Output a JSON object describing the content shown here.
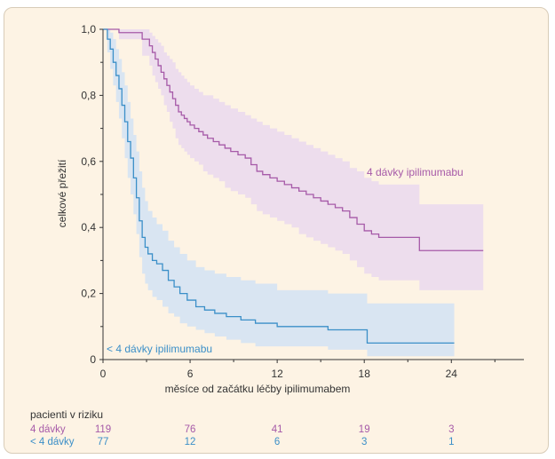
{
  "chart_data": {
    "type": "line",
    "xlabel": "měsíce od začátku léčby ipilimumabem",
    "ylabel": "celkové přežití",
    "xlim": [
      0,
      29
    ],
    "ylim": [
      0,
      1
    ],
    "xticks": [
      0,
      6,
      12,
      18,
      24
    ],
    "yticks": [
      0,
      0.2,
      0.4,
      0.6,
      0.8,
      1.0
    ],
    "ytick_labels": [
      "0",
      "0,2",
      "0,4",
      "0,6",
      "0,8",
      "1,0"
    ],
    "grid": false,
    "series": [
      {
        "name": "4 dávky ipilimumabu",
        "color": "#a65aa8",
        "band_color": "#ead8ee",
        "x": [
          0,
          1.1,
          2.7,
          3.2,
          3.4,
          3.6,
          3.8,
          4.0,
          4.2,
          4.4,
          4.6,
          4.8,
          5.0,
          5.2,
          5.4,
          5.6,
          5.8,
          6.0,
          6.3,
          6.6,
          6.9,
          7.2,
          7.6,
          8.0,
          8.4,
          8.8,
          9.3,
          9.8,
          10.2,
          10.6,
          11.0,
          11.5,
          12.0,
          12.5,
          13.0,
          13.5,
          14.0,
          14.5,
          15.0,
          15.5,
          16.0,
          16.5,
          17.0,
          17.5,
          18.0,
          18.5,
          19.0,
          21.8,
          26.2
        ],
        "y": [
          1.0,
          0.99,
          0.97,
          0.95,
          0.93,
          0.91,
          0.89,
          0.87,
          0.85,
          0.83,
          0.81,
          0.79,
          0.77,
          0.75,
          0.74,
          0.73,
          0.72,
          0.71,
          0.7,
          0.69,
          0.68,
          0.67,
          0.66,
          0.65,
          0.64,
          0.63,
          0.62,
          0.61,
          0.59,
          0.57,
          0.56,
          0.55,
          0.54,
          0.53,
          0.52,
          0.51,
          0.5,
          0.49,
          0.48,
          0.47,
          0.46,
          0.45,
          0.43,
          0.41,
          0.39,
          0.38,
          0.37,
          0.33,
          0.33
        ],
        "upper": [
          1.0,
          1.0,
          1.0,
          0.99,
          0.98,
          0.97,
          0.96,
          0.95,
          0.93,
          0.92,
          0.91,
          0.9,
          0.88,
          0.87,
          0.86,
          0.85,
          0.84,
          0.83,
          0.82,
          0.81,
          0.8,
          0.8,
          0.79,
          0.78,
          0.77,
          0.76,
          0.75,
          0.74,
          0.73,
          0.72,
          0.71,
          0.7,
          0.69,
          0.68,
          0.67,
          0.66,
          0.65,
          0.64,
          0.63,
          0.62,
          0.61,
          0.6,
          0.58,
          0.57,
          0.55,
          0.54,
          0.53,
          0.47,
          0.47
        ],
        "lower": [
          1.0,
          0.97,
          0.92,
          0.89,
          0.86,
          0.84,
          0.82,
          0.8,
          0.77,
          0.75,
          0.72,
          0.7,
          0.67,
          0.65,
          0.64,
          0.63,
          0.62,
          0.61,
          0.6,
          0.59,
          0.57,
          0.56,
          0.55,
          0.54,
          0.52,
          0.51,
          0.5,
          0.49,
          0.47,
          0.45,
          0.44,
          0.43,
          0.42,
          0.41,
          0.4,
          0.38,
          0.37,
          0.36,
          0.35,
          0.34,
          0.33,
          0.32,
          0.3,
          0.28,
          0.26,
          0.25,
          0.24,
          0.21,
          0.21
        ]
      },
      {
        "name": "< 4 dávky ipilimumabu",
        "color": "#3b8fc8",
        "band_color": "#d2e2f4",
        "x": [
          0,
          0.3,
          0.5,
          0.7,
          0.9,
          1.1,
          1.3,
          1.5,
          1.7,
          1.9,
          2.1,
          2.3,
          2.5,
          2.7,
          2.9,
          3.1,
          3.4,
          3.7,
          4.1,
          4.5,
          4.9,
          5.3,
          5.8,
          6.4,
          7.0,
          7.7,
          8.5,
          9.5,
          10.5,
          12.0,
          15.5,
          18.2,
          24.2
        ],
        "y": [
          1.0,
          0.97,
          0.94,
          0.9,
          0.86,
          0.82,
          0.77,
          0.72,
          0.66,
          0.61,
          0.55,
          0.49,
          0.42,
          0.37,
          0.34,
          0.32,
          0.3,
          0.29,
          0.27,
          0.24,
          0.22,
          0.2,
          0.18,
          0.16,
          0.15,
          0.14,
          0.13,
          0.12,
          0.11,
          0.1,
          0.09,
          0.05,
          0.05
        ],
        "upper": [
          1.0,
          1.0,
          0.99,
          0.97,
          0.94,
          0.91,
          0.87,
          0.83,
          0.78,
          0.73,
          0.68,
          0.63,
          0.57,
          0.52,
          0.48,
          0.45,
          0.43,
          0.41,
          0.39,
          0.36,
          0.34,
          0.32,
          0.3,
          0.28,
          0.27,
          0.26,
          0.25,
          0.24,
          0.23,
          0.21,
          0.2,
          0.17,
          0.17
        ],
        "lower": [
          1.0,
          0.93,
          0.88,
          0.83,
          0.78,
          0.73,
          0.67,
          0.61,
          0.55,
          0.5,
          0.44,
          0.38,
          0.31,
          0.26,
          0.23,
          0.21,
          0.19,
          0.18,
          0.16,
          0.14,
          0.13,
          0.11,
          0.1,
          0.09,
          0.08,
          0.07,
          0.06,
          0.05,
          0.04,
          0.04,
          0.03,
          0.01,
          0.01
        ]
      }
    ],
    "risk_table": {
      "title": "pacienti v riziku",
      "times": [
        0,
        6,
        12,
        18,
        24
      ],
      "rows": [
        {
          "label": "4 dávky",
          "color": "#a65aa8",
          "counts": [
            "119",
            "76",
            "41",
            "19",
            "3"
          ]
        },
        {
          "label": "< 4 dávky",
          "color": "#3b8fc8",
          "counts": [
            "77",
            "12",
            "6",
            "3",
            "1"
          ]
        }
      ]
    }
  }
}
